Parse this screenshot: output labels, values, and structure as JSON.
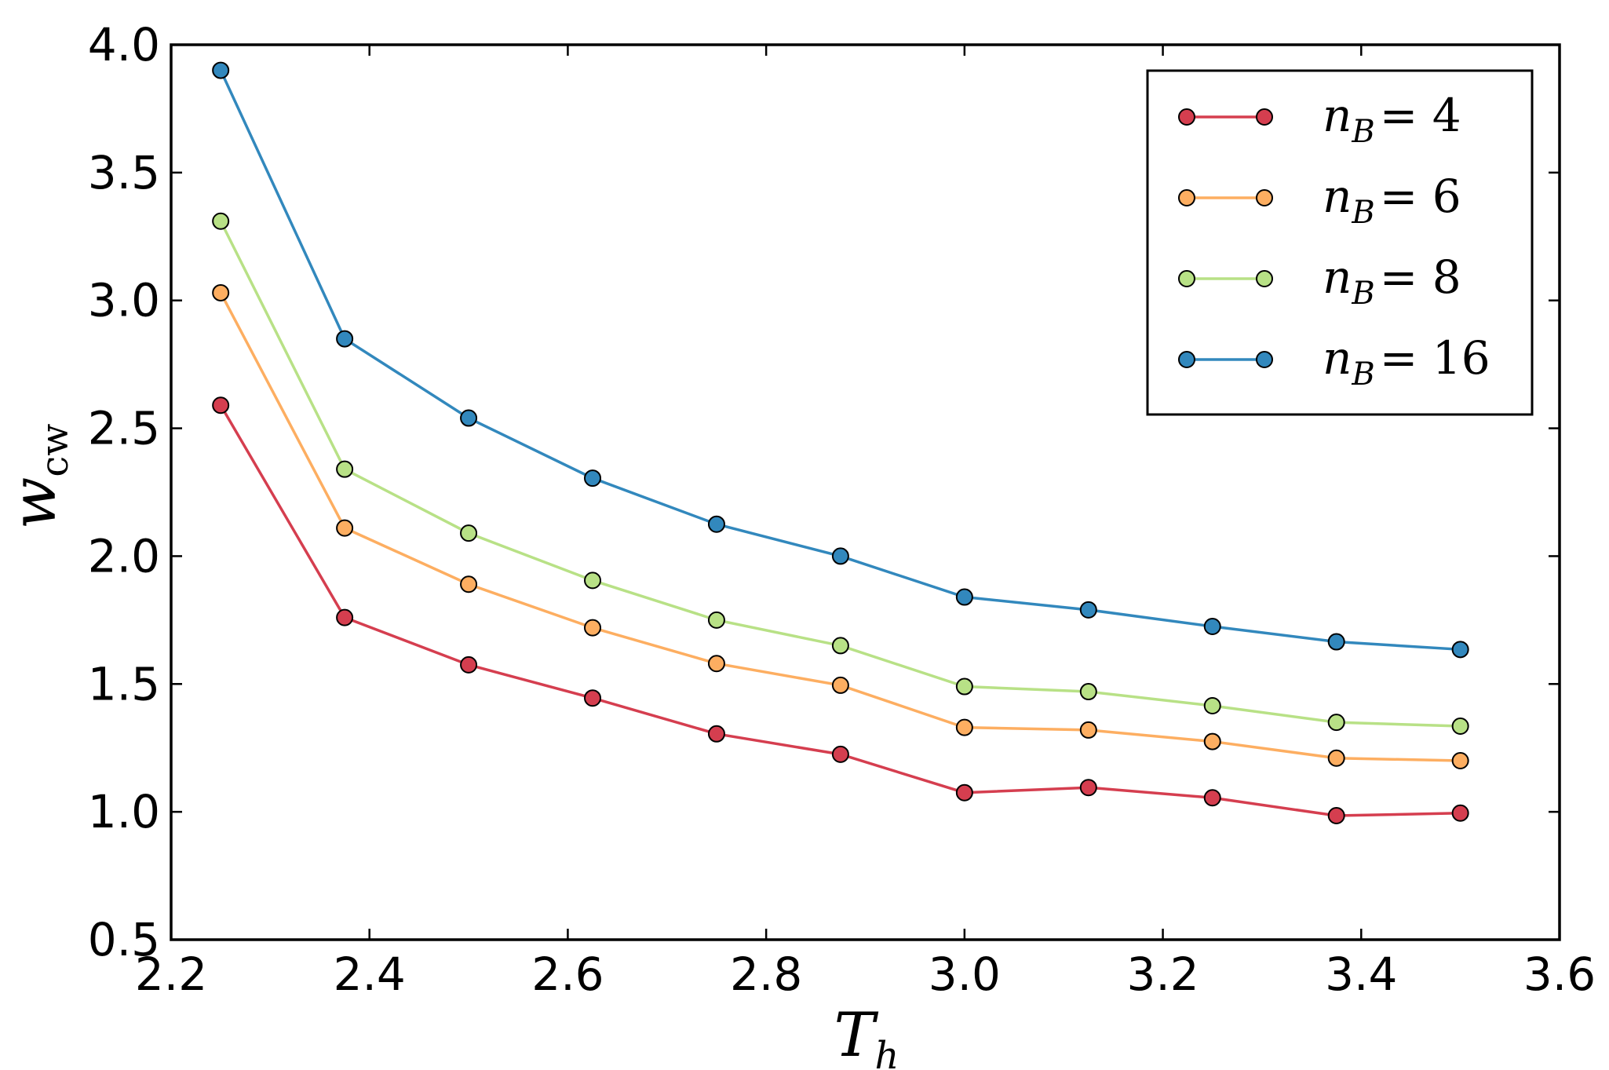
{
  "chart_data": {
    "type": "line",
    "title": "",
    "xlabel": {
      "main": "T",
      "sub": "h"
    },
    "ylabel": {
      "main": "w",
      "sub": "cw"
    },
    "xlim": [
      2.2,
      3.6
    ],
    "ylim": [
      0.5,
      4.0
    ],
    "xticks": [
      "2.2",
      "2.4",
      "2.6",
      "2.8",
      "3.0",
      "3.2",
      "3.4",
      "3.6"
    ],
    "yticks": [
      "0.5",
      "1.0",
      "1.5",
      "2.0",
      "2.5",
      "3.0",
      "3.5",
      "4.0"
    ],
    "x": [
      2.25,
      2.375,
      2.5,
      2.625,
      2.75,
      2.875,
      3.0,
      3.125,
      3.25,
      3.375,
      3.5
    ],
    "grid": false,
    "legend_position": "top-right",
    "series": [
      {
        "name": "n_B = 4",
        "label_main": "n",
        "label_sub": "B",
        "label_eq": "= 4",
        "color": "#d53e4f",
        "values": [
          2.59,
          1.76,
          1.575,
          1.445,
          1.305,
          1.225,
          1.075,
          1.095,
          1.055,
          0.985,
          0.995
        ]
      },
      {
        "name": "n_B = 6",
        "label_main": "n",
        "label_sub": "B",
        "label_eq": "= 6",
        "color": "#fdae61",
        "values": [
          3.03,
          2.11,
          1.89,
          1.72,
          1.58,
          1.495,
          1.33,
          1.32,
          1.275,
          1.21,
          1.2
        ]
      },
      {
        "name": "n_B = 8",
        "label_main": "n",
        "label_sub": "B",
        "label_eq": "= 8",
        "color": "#b8e186",
        "values": [
          3.31,
          2.34,
          2.09,
          1.905,
          1.75,
          1.65,
          1.49,
          1.47,
          1.415,
          1.35,
          1.335
        ]
      },
      {
        "name": "n_B = 16",
        "label_main": "n",
        "label_sub": "B",
        "label_eq": "= 16",
        "color": "#3288bd",
        "values": [
          3.9,
          2.85,
          2.54,
          2.305,
          2.125,
          2.0,
          1.84,
          1.79,
          1.725,
          1.665,
          1.635
        ]
      }
    ]
  }
}
